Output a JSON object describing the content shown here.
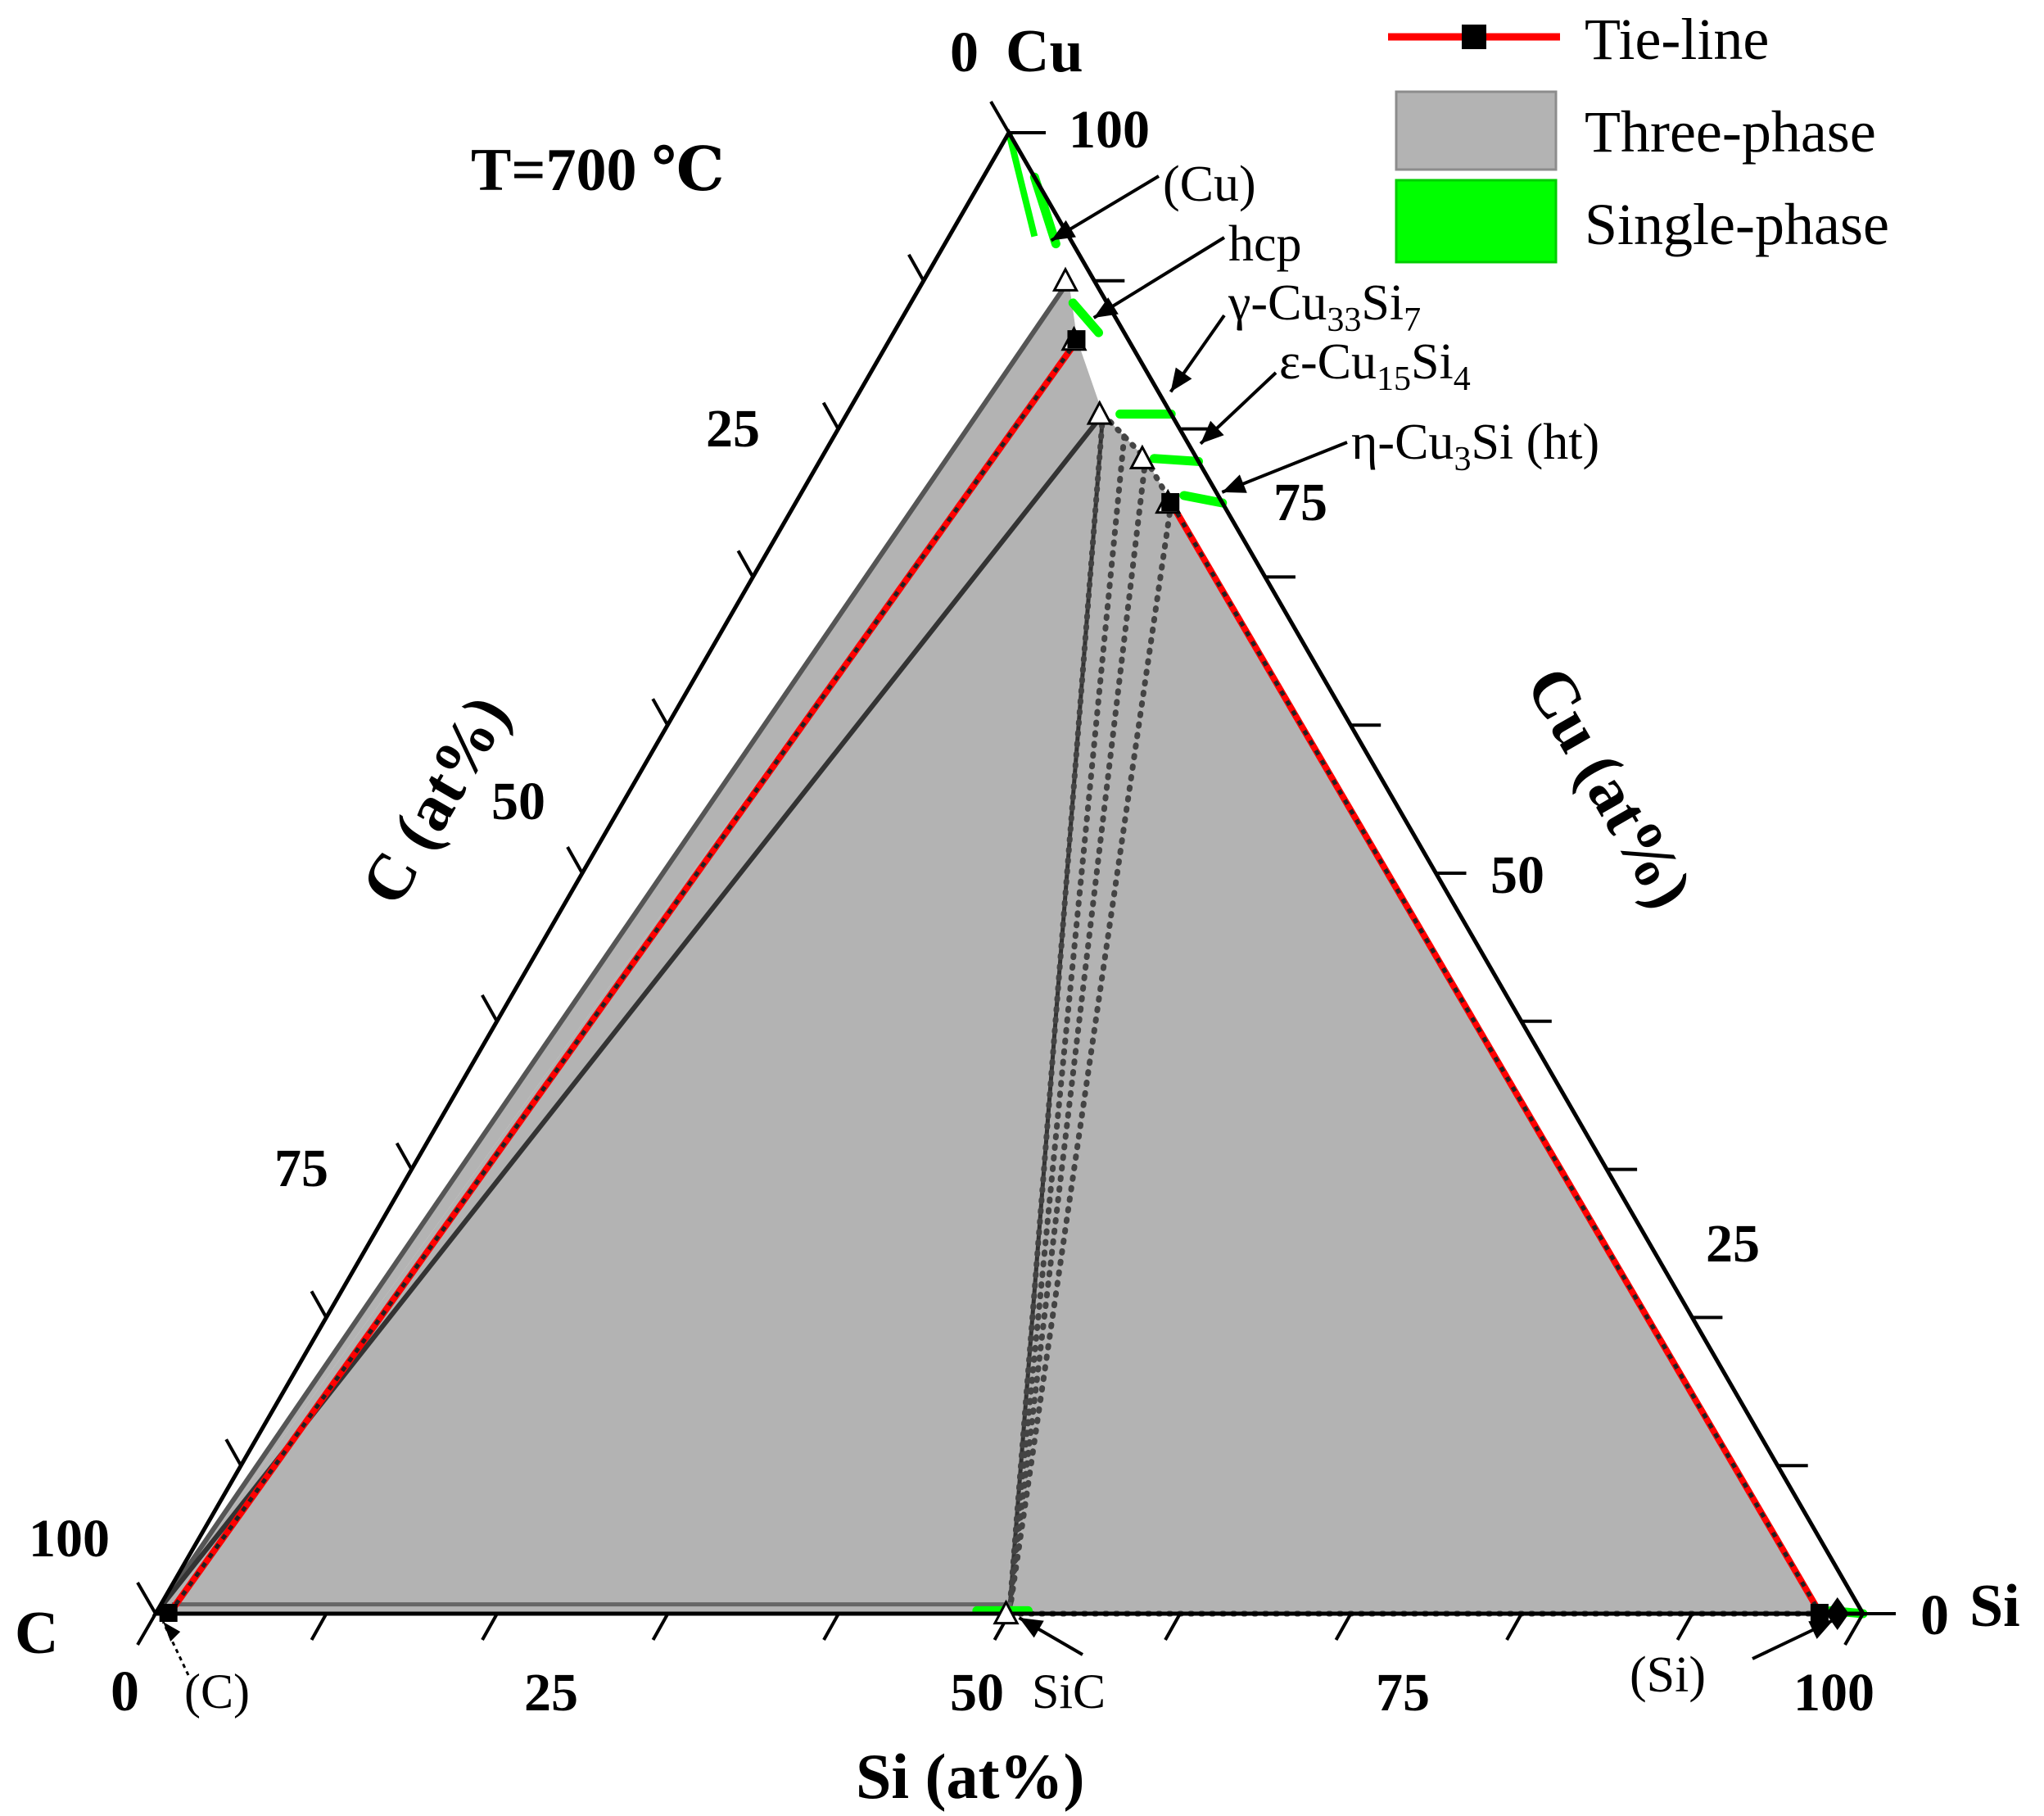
{
  "chart_data": {
    "type": "ternary",
    "title": "T=700 ℃",
    "vertices": {
      "top": "Cu",
      "left": "C",
      "right": "Si"
    },
    "vertex_zero_labels": {
      "top": "0",
      "left": "0",
      "right": "0"
    },
    "axes": {
      "bottom": {
        "label": "Si (at%)",
        "ticks": [
          "0",
          "25",
          "50",
          "75",
          "100"
        ]
      },
      "left": {
        "label": "C (at%)",
        "ticks": [
          "25",
          "50",
          "75",
          "100"
        ]
      },
      "right": {
        "label": "Cu (at%)",
        "ticks": [
          "25",
          "50",
          "75"
        ]
      },
      "top_tick": "100"
    },
    "legend": {
      "position": "top-right",
      "entries": [
        {
          "name": "Tie-line",
          "color": "#ff0000"
        },
        {
          "name": "Three-phase",
          "color": "#b3b3b3"
        },
        {
          "name": "Single-phase",
          "color": "#00ff00"
        }
      ]
    },
    "phases": [
      {
        "label": "(Cu)",
        "label_main": "(Cu)",
        "sub1": "",
        "mid": "",
        "sub2": "",
        "suffix": "",
        "si": 5.5,
        "cu": 93
      },
      {
        "label": "hcp",
        "label_main": "hcp",
        "sub1": "",
        "mid": "",
        "sub2": "",
        "suffix": "",
        "si": 10.5,
        "cu": 87.5
      },
      {
        "label": "γ-Cu33Si7",
        "label_main": "γ-Cu",
        "sub1": "33",
        "mid": "Si",
        "sub2": "7",
        "suffix": "",
        "si": 17.5,
        "cu": 82.5
      },
      {
        "label": "ε-Cu15Si4",
        "label_main": "ε-Cu",
        "sub1": "15",
        "mid": "Si",
        "sub2": "4",
        "suffix": "",
        "si": 21,
        "cu": 79
      },
      {
        "label": "η-Cu3Si (ht)",
        "label_main": "η-Cu",
        "sub1": "3",
        "mid": "Si (ht)",
        "sub2": "",
        "suffix": "",
        "si": 24,
        "cu": 76
      },
      {
        "label": "SiC",
        "si": 50,
        "cu": 0
      },
      {
        "label": "(C)",
        "si": 0,
        "cu": 0
      },
      {
        "label": "(Si)",
        "si": 100,
        "cu": 0
      }
    ],
    "three_phase_regions": [
      {
        "points": [
          [
            0,
            0
          ],
          [
            8.5,
            90
          ],
          [
            11,
            86
          ]
        ]
      },
      {
        "points": [
          [
            0,
            0
          ],
          [
            11,
            86
          ],
          [
            15,
            81
          ],
          [
            50,
            0
          ]
        ]
      },
      {
        "points": [
          [
            15,
            81
          ],
          [
            50,
            0
          ],
          [
            19,
            78
          ]
        ]
      },
      {
        "points": [
          [
            19,
            78
          ],
          [
            50,
            0
          ],
          [
            22,
            75
          ]
        ]
      },
      {
        "points": [
          [
            22,
            75
          ],
          [
            50,
            0
          ],
          [
            97.5,
            0
          ]
        ]
      }
    ],
    "tie_lines": [
      {
        "from": [
          0.8,
          0
        ],
        "to": [
          11,
          86
        ]
      },
      {
        "from": [
          22,
          75
        ],
        "to": [
          97.5,
          0
        ]
      }
    ]
  }
}
